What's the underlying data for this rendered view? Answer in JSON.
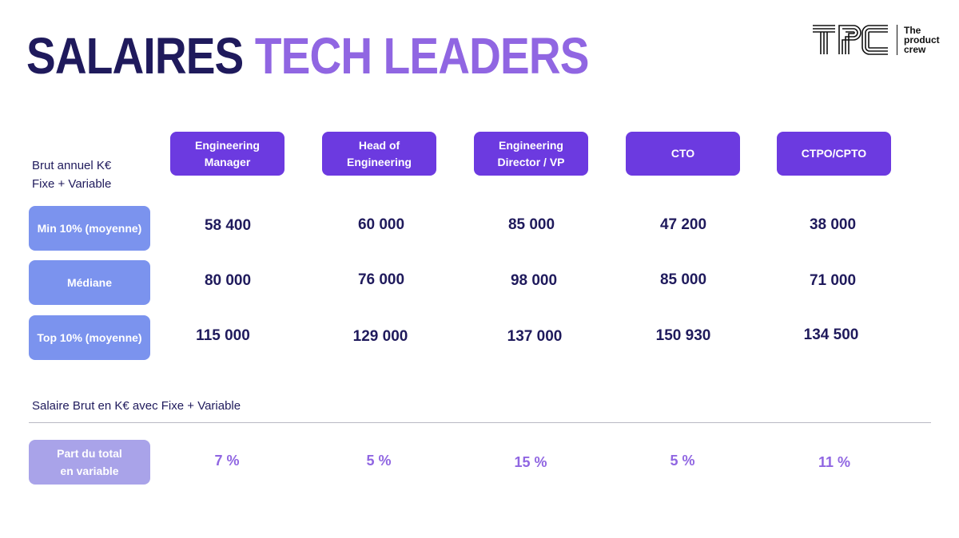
{
  "title": {
    "part1": "SALAIRES",
    "part2": "TECH LEADERS"
  },
  "logo": {
    "letters": "TPC",
    "line1": "The",
    "line2": "product",
    "line3": "crew"
  },
  "corner_label": {
    "line1": "Brut annuel K€",
    "line2": "Fixe + Variable"
  },
  "columns": [
    {
      "line1": "Engineering",
      "line2": "Manager"
    },
    {
      "line1": "Head of",
      "line2": "Engineering"
    },
    {
      "line1": "Engineering",
      "line2": "Director / VP"
    },
    {
      "line1": "CTO",
      "line2": ""
    },
    {
      "line1": "CTPO/CPTO",
      "line2": ""
    }
  ],
  "rows": [
    {
      "label": "Min 10% (moyenne)",
      "values": [
        "58 400",
        "60 000",
        "85 000",
        "47 200",
        "38 000"
      ]
    },
    {
      "label": "Médiane",
      "values": [
        "80 000",
        "76 000",
        "98 000",
        "85 000",
        "71 000"
      ]
    },
    {
      "label": "Top 10% (moyenne)",
      "values": [
        "115 000",
        "129 000",
        "137 000",
        "150 930",
        "134 500"
      ]
    }
  ],
  "footnote": "Salaire Brut en K€ avec Fixe + Variable",
  "variable_row": {
    "label_line1": "Part du total",
    "label_line2": "en variable",
    "values": [
      "7 %",
      "5 %",
      "15 %",
      "5 %",
      "11 %"
    ]
  },
  "colors": {
    "dark_navy": "#1f1a5c",
    "accent_purple": "#9066e2",
    "header_purple": "#6c3ae0",
    "row_label_blue": "#7b93ee",
    "row_label_lavender": "#a9a3e9"
  }
}
